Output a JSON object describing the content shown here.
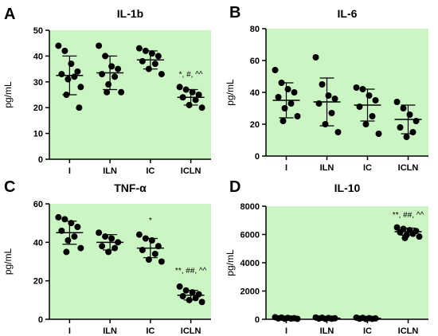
{
  "chart_data": [
    {
      "panel": "A",
      "type": "scatter",
      "title": "IL-1b",
      "xlabel": "",
      "ylabel": "pg/mL",
      "ylim": [
        0,
        50
      ],
      "yticks": [
        0,
        10,
        20,
        30,
        40,
        50
      ],
      "categories": [
        "I",
        "ILN",
        "IC",
        "ICLN"
      ],
      "background": "#ccf5c4",
      "series": [
        {
          "points": [
            44,
            42,
            37,
            34,
            33,
            32,
            31,
            28,
            25,
            20
          ],
          "mean": 32.5,
          "sd": 7.5
        },
        {
          "points": [
            44,
            40,
            36,
            35,
            33,
            32,
            29,
            26,
            26
          ],
          "mean": 33.5,
          "sd": 6.5
        },
        {
          "points": [
            43,
            42,
            41,
            40,
            38,
            37,
            35,
            33
          ],
          "mean": 38.5,
          "sd": 3.5
        },
        {
          "points": [
            28,
            27,
            26,
            25,
            24,
            23,
            21,
            20
          ],
          "mean": 24,
          "sd": 3
        }
      ],
      "annotations": [
        {
          "category": "ICLN",
          "text": "*, #, ^^",
          "y": 32
        }
      ]
    },
    {
      "panel": "B",
      "type": "scatter",
      "title": "IL-6",
      "xlabel": "",
      "ylabel": "pg/mL",
      "ylim": [
        0,
        80
      ],
      "yticks": [
        0,
        20,
        40,
        60,
        80
      ],
      "categories": [
        "I",
        "ILN",
        "IC",
        "ICLN"
      ],
      "background": "#ccf5c4",
      "series": [
        {
          "points": [
            54,
            46,
            42,
            40,
            37,
            33,
            30,
            25,
            22
          ],
          "mean": 35,
          "sd": 11
        },
        {
          "points": [
            62,
            45,
            38,
            36,
            33,
            27,
            20,
            15
          ],
          "mean": 34,
          "sd": 15
        },
        {
          "points": [
            43,
            42,
            38,
            35,
            31,
            25,
            20,
            14
          ],
          "mean": 32,
          "sd": 10
        },
        {
          "points": [
            34,
            30,
            26,
            22,
            18,
            15,
            12
          ],
          "mean": 23,
          "sd": 9
        }
      ]
    },
    {
      "panel": "C",
      "type": "scatter",
      "title": "TNF-α",
      "xlabel": "",
      "ylabel": "pg/mL",
      "ylim": [
        0,
        60
      ],
      "yticks": [
        0,
        20,
        40,
        60
      ],
      "categories": [
        "I",
        "ILN",
        "IC",
        "ICLN"
      ],
      "background": "#ccf5c4",
      "series": [
        {
          "points": [
            53,
            52,
            50,
            48,
            46,
            43,
            41,
            37,
            35
          ],
          "mean": 45,
          "sd": 6
        },
        {
          "points": [
            45,
            43,
            42,
            40,
            38,
            37,
            35
          ],
          "mean": 40,
          "sd": 4
        },
        {
          "points": [
            44,
            42,
            41,
            38,
            36,
            34,
            31,
            30
          ],
          "mean": 37,
          "sd": 5
        },
        {
          "points": [
            17,
            15,
            14,
            13,
            12,
            11,
            10,
            9
          ],
          "mean": 12.5,
          "sd": 2.5
        }
      ],
      "annotations": [
        {
          "category": "IC",
          "text": "*",
          "y": 50
        },
        {
          "category": "ICLN",
          "text": "**, ##, ^^",
          "y": 24
        }
      ]
    },
    {
      "panel": "D",
      "type": "scatter",
      "title": "IL-10",
      "xlabel": "",
      "ylabel": "pg/mL",
      "ylim": [
        0,
        8000
      ],
      "yticks": [
        0,
        2000,
        4000,
        6000,
        8000
      ],
      "categories": [
        "I",
        "ILN",
        "IC",
        "ICLN"
      ],
      "background": "#ccf5c4",
      "series": [
        {
          "points": [
            150,
            120,
            100,
            80,
            60,
            50,
            40,
            30
          ],
          "mean": 80,
          "sd": 40
        },
        {
          "points": [
            130,
            110,
            90,
            70,
            50,
            40,
            30
          ],
          "mean": 75,
          "sd": 35
        },
        {
          "points": [
            120,
            100,
            80,
            60,
            40,
            30,
            20
          ],
          "mean": 65,
          "sd": 35
        },
        {
          "points": [
            6500,
            6400,
            6300,
            6250,
            6150,
            6050,
            5950,
            5850,
            5750
          ],
          "mean": 6200,
          "sd": 250
        }
      ],
      "annotations": [
        {
          "category": "ICLN",
          "text": "**, ##, ^^",
          "y": 7200
        }
      ]
    }
  ]
}
